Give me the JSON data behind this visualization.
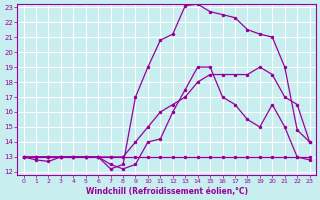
{
  "xlabel": "Windchill (Refroidissement éolien,°C)",
  "xlim": [
    0,
    23
  ],
  "ylim": [
    12,
    23
  ],
  "xticks": [
    0,
    1,
    2,
    3,
    4,
    5,
    6,
    7,
    8,
    9,
    10,
    11,
    12,
    13,
    14,
    15,
    16,
    17,
    18,
    19,
    20,
    21,
    22,
    23
  ],
  "yticks": [
    12,
    13,
    14,
    15,
    16,
    17,
    18,
    19,
    20,
    21,
    22,
    23
  ],
  "bg_color": "#c8eef0",
  "line_color": "#990099",
  "grid_color": "#ffffff",
  "lines": [
    {
      "x": [
        0,
        1,
        2,
        3,
        4,
        5,
        6,
        7,
        8,
        9,
        10,
        11,
        12,
        13,
        14,
        15,
        16,
        17,
        18,
        19,
        20,
        21,
        22,
        23
      ],
      "y": [
        13,
        13,
        13,
        13,
        13,
        13,
        13,
        13,
        13,
        13,
        13,
        13,
        13,
        13,
        13,
        13,
        13,
        13,
        13,
        13,
        13,
        13,
        13,
        13
      ]
    },
    {
      "x": [
        0,
        1,
        2,
        3,
        4,
        5,
        6,
        7,
        8,
        9,
        10,
        11,
        12,
        13,
        14,
        15,
        16,
        17,
        18,
        19,
        20,
        21,
        22,
        23
      ],
      "y": [
        13,
        13,
        13,
        13,
        13,
        13,
        13,
        12.5,
        12.2,
        12.5,
        14,
        14.2,
        16,
        17.5,
        19,
        19,
        17,
        16.5,
        15.5,
        15,
        16.5,
        15,
        13,
        12.8
      ]
    },
    {
      "x": [
        0,
        1,
        2,
        3,
        4,
        5,
        6,
        7,
        8,
        9,
        10,
        11,
        12,
        13,
        14,
        15,
        16,
        17,
        18,
        19,
        20,
        21,
        22,
        23
      ],
      "y": [
        13,
        12.8,
        12.7,
        13,
        13,
        13,
        13,
        12.2,
        12.5,
        17,
        19,
        20.8,
        21.2,
        23.1,
        23.2,
        22.7,
        22.5,
        22.3,
        21.5,
        21.2,
        21,
        19,
        14.8,
        14
      ]
    },
    {
      "x": [
        0,
        1,
        2,
        3,
        4,
        5,
        6,
        7,
        8,
        9,
        10,
        11,
        12,
        13,
        14,
        15,
        16,
        17,
        18,
        19,
        20,
        21,
        22,
        23
      ],
      "y": [
        13,
        13,
        13,
        13,
        13,
        13,
        13,
        13,
        13,
        14,
        15,
        16,
        16.5,
        17,
        18,
        18.5,
        18.5,
        18.5,
        18.5,
        19,
        18.5,
        17,
        16.5,
        14
      ]
    }
  ]
}
